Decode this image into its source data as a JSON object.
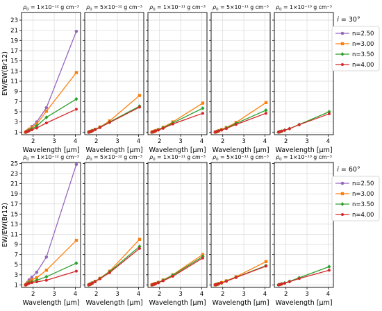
{
  "colors": {
    "n=2.50": "#9467bd",
    "n=3.00": "#ff7f0e",
    "n=3.50": "#2ca02c",
    "n=4.00": "#d62728"
  },
  "chart_data": {
    "type": "line",
    "ylabel": "EW/EW(Br12)",
    "xlabel": "Wavelength [μm]",
    "x": [
      1.64,
      1.69,
      1.74,
      1.81,
      1.94,
      2.17,
      2.63,
      4.05
    ],
    "xlim": [
      1.45,
      4.25
    ],
    "xticks": [
      2,
      3,
      4
    ],
    "grid": true,
    "legend_entries": [
      "n=2.50",
      "n=3.00",
      "n=3.50",
      "n=4.00"
    ],
    "rho_labels": [
      "1×10⁻¹²",
      "5×10⁻¹²",
      "1×10⁻¹¹",
      "5×10⁻¹¹",
      "1×10⁻¹⁰"
    ],
    "rows": [
      {
        "inclination": "30°",
        "ylim": [
          0.5,
          24.5
        ],
        "yticks": [
          1,
          3,
          5,
          7,
          9,
          11,
          13,
          15,
          17,
          19,
          21,
          23
        ],
        "panels": [
          {
            "series": [
              {
                "name": "n=2.50",
                "values": [
                  1.0,
                  1.15,
                  1.3,
                  1.6,
                  2.1,
                  3.0,
                  5.8,
                  20.8
                ]
              },
              {
                "name": "n=3.00",
                "values": [
                  1.0,
                  1.1,
                  1.25,
                  1.5,
                  1.9,
                  2.6,
                  5.1,
                  12.7
                ]
              },
              {
                "name": "n=3.50",
                "values": [
                  1.0,
                  1.08,
                  1.18,
                  1.35,
                  1.65,
                  2.2,
                  3.9,
                  7.5
                ]
              },
              {
                "name": "n=4.00",
                "values": [
                  1.0,
                  1.05,
                  1.12,
                  1.25,
                  1.45,
                  1.8,
                  2.8,
                  5.5
                ]
              }
            ]
          },
          {
            "series": [
              {
                "name": "n=3.00",
                "values": [
                  1.0,
                  1.08,
                  1.15,
                  1.3,
                  1.55,
                  2.0,
                  3.2,
                  8.2
                ]
              },
              {
                "name": "n=3.50",
                "values": [
                  1.0,
                  1.07,
                  1.13,
                  1.27,
                  1.5,
                  1.95,
                  3.0,
                  6.1
                ]
              },
              {
                "name": "n=4.00",
                "values": [
                  1.0,
                  1.06,
                  1.12,
                  1.25,
                  1.47,
                  1.9,
                  2.9,
                  5.9
                ]
              }
            ]
          },
          {
            "series": [
              {
                "name": "n=3.00",
                "values": [
                  1.0,
                  1.07,
                  1.14,
                  1.28,
                  1.5,
                  1.95,
                  3.0,
                  6.7
                ]
              },
              {
                "name": "n=3.50",
                "values": [
                  1.0,
                  1.06,
                  1.12,
                  1.25,
                  1.45,
                  1.85,
                  2.8,
                  5.7
                ]
              },
              {
                "name": "n=4.00",
                "values": [
                  1.0,
                  1.05,
                  1.1,
                  1.22,
                  1.4,
                  1.75,
                  2.6,
                  4.7
                ]
              }
            ]
          },
          {
            "series": [
              {
                "name": "n=3.00",
                "values": [
                  1.0,
                  1.07,
                  1.14,
                  1.28,
                  1.5,
                  1.9,
                  2.9,
                  6.8
                ]
              },
              {
                "name": "n=3.50",
                "values": [
                  1.0,
                  1.06,
                  1.12,
                  1.25,
                  1.45,
                  1.8,
                  2.7,
                  5.3
                ]
              },
              {
                "name": "n=4.00",
                "values": [
                  1.0,
                  1.05,
                  1.1,
                  1.22,
                  1.4,
                  1.7,
                  2.5,
                  4.7
                ]
              }
            ]
          },
          {
            "series": [
              {
                "name": "n=3.50",
                "values": [
                  1.0,
                  1.05,
                  1.1,
                  1.2,
                  1.38,
                  1.7,
                  2.5,
                  5.0
                ]
              },
              {
                "name": "n=4.00",
                "values": [
                  1.0,
                  1.05,
                  1.1,
                  1.2,
                  1.37,
                  1.68,
                  2.45,
                  4.6
                ]
              }
            ]
          }
        ]
      },
      {
        "inclination": "60°",
        "ylim": [
          0.5,
          25.2
        ],
        "yticks": [
          1,
          3,
          5,
          7,
          9,
          11,
          13,
          15,
          17,
          19,
          21,
          23,
          25
        ],
        "panels": [
          {
            "series": [
              {
                "name": "n=2.50",
                "values": [
                  1.0,
                  1.2,
                  1.5,
                  2.0,
                  2.5,
                  3.5,
                  6.5,
                  24.8
                ]
              },
              {
                "name": "n=3.00",
                "values": [
                  1.0,
                  1.15,
                  1.35,
                  1.6,
                  2.0,
                  2.4,
                  3.9,
                  9.8
                ]
              },
              {
                "name": "n=3.50",
                "values": [
                  1.0,
                  1.1,
                  1.25,
                  1.45,
                  1.6,
                  1.9,
                  2.6,
                  5.3
                ]
              },
              {
                "name": "n=4.00",
                "values": [
                  1.0,
                  1.08,
                  1.18,
                  1.3,
                  1.45,
                  1.6,
                  1.9,
                  3.7
                ]
              }
            ]
          },
          {
            "series": [
              {
                "name": "n=3.00",
                "values": [
                  1.0,
                  1.1,
                  1.2,
                  1.4,
                  1.7,
                  2.3,
                  3.7,
                  10.0
                ]
              },
              {
                "name": "n=3.50",
                "values": [
                  1.0,
                  1.08,
                  1.18,
                  1.35,
                  1.65,
                  2.25,
                  3.6,
                  8.6
                ]
              },
              {
                "name": "n=4.00",
                "values": [
                  1.0,
                  1.07,
                  1.16,
                  1.32,
                  1.6,
                  2.2,
                  3.4,
                  8.2
                ]
              }
            ]
          },
          {
            "series": [
              {
                "name": "n=3.00",
                "values": [
                  1.0,
                  1.07,
                  1.14,
                  1.28,
                  1.5,
                  1.95,
                  3.0,
                  7.0
                ]
              },
              {
                "name": "n=3.50",
                "values": [
                  1.0,
                  1.06,
                  1.12,
                  1.25,
                  1.47,
                  1.9,
                  2.9,
                  6.6
                ]
              },
              {
                "name": "n=4.00",
                "values": [
                  1.0,
                  1.05,
                  1.1,
                  1.22,
                  1.42,
                  1.8,
                  2.7,
                  6.3
                ]
              }
            ]
          },
          {
            "series": [
              {
                "name": "n=3.00",
                "values": [
                  1.0,
                  1.06,
                  1.12,
                  1.25,
                  1.45,
                  1.8,
                  2.6,
                  5.6
                ]
              },
              {
                "name": "n=3.50",
                "values": [
                  1.0,
                  1.05,
                  1.1,
                  1.22,
                  1.4,
                  1.75,
                  2.5,
                  4.8
                ]
              },
              {
                "name": "n=4.00",
                "values": [
                  1.0,
                  1.05,
                  1.1,
                  1.2,
                  1.38,
                  1.72,
                  2.45,
                  4.7
                ]
              }
            ]
          },
          {
            "series": [
              {
                "name": "n=3.50",
                "values": [
                  1.0,
                  1.05,
                  1.1,
                  1.2,
                  1.37,
                  1.7,
                  2.4,
                  4.6
                ]
              },
              {
                "name": "n=4.00",
                "values": [
                  1.0,
                  1.04,
                  1.08,
                  1.18,
                  1.33,
                  1.62,
                  2.25,
                  3.9
                ]
              }
            ]
          }
        ]
      }
    ]
  }
}
